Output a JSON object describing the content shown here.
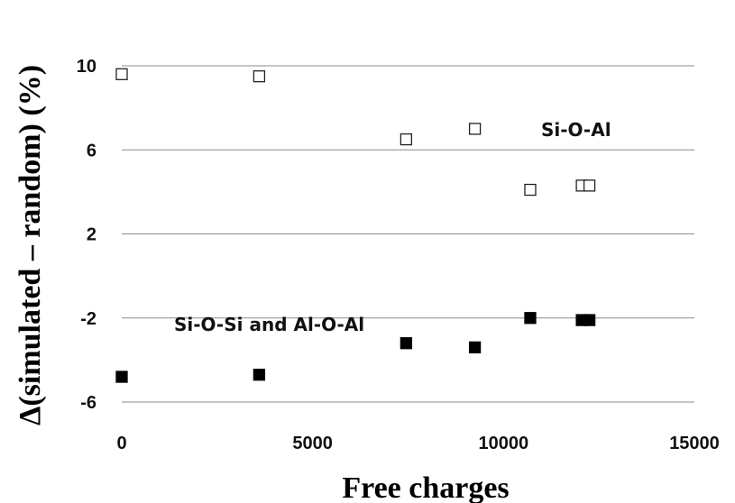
{
  "chart_data": {
    "type": "scatter",
    "title": "",
    "xlabel": "Free charges",
    "ylabel": "Δ(simulated – random) (%)",
    "xlim": [
      0,
      15000
    ],
    "ylim": [
      -6,
      10
    ],
    "x_ticks": [
      "0",
      "5000",
      "10000",
      "15000"
    ],
    "y_ticks": [
      "10",
      "6",
      "2",
      "-2",
      "-6"
    ],
    "grid": "horizontal",
    "annotations": [
      "Si-O-Al",
      "Si-O-Si and Al-O-Al"
    ],
    "series": [
      {
        "marker": "open-square",
        "color": "#222222",
        "x": [
          0,
          3600,
          7450,
          9250,
          10700,
          12050,
          12250
        ],
        "y": [
          9.6,
          9.5,
          6.5,
          7.0,
          4.1,
          4.3,
          4.3
        ]
      },
      {
        "marker": "filled-square",
        "color": "#000000",
        "x": [
          0,
          3600,
          7450,
          9250,
          10700,
          12050,
          12250
        ],
        "y": [
          -4.8,
          -4.7,
          -3.2,
          -3.4,
          -2.0,
          -2.1,
          -2.1
        ]
      }
    ]
  }
}
